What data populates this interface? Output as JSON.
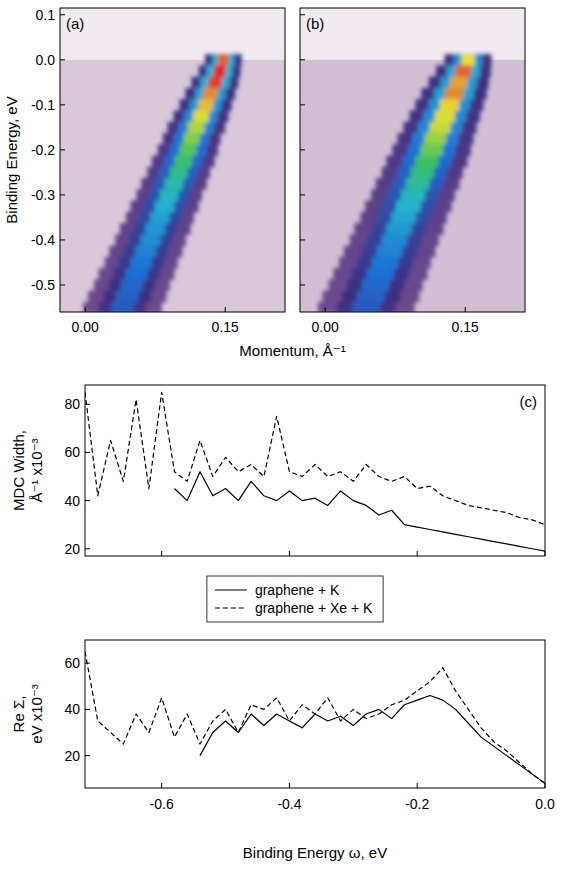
{
  "chart_data": [
    {
      "type": "band",
      "title": "(a)",
      "ylabel": "Binding Energy, eV",
      "xlabel": "Momentum, Å⁻¹",
      "xlim": [
        -0.027,
        0.214
      ],
      "ylim": [
        -0.56,
        0.115
      ],
      "xticks": [
        {
          "value": 0,
          "label": "0.00"
        },
        {
          "value": 0.15,
          "label": "0.15"
        }
      ],
      "yticks": [
        0.1,
        {
          "value": 0,
          "label": "0.0"
        },
        -0.1,
        -0.2,
        -0.3,
        -0.4,
        -0.5
      ],
      "x": [
        0.148,
        0.144,
        0.139,
        0.134,
        0.129,
        0.124,
        0.119,
        0.114,
        0.11,
        0.105,
        0.1,
        0.095,
        0.09,
        0.085,
        0.08,
        0.075,
        0.07,
        0.065,
        0.06,
        0.055,
        0.05,
        0.045,
        0.04
      ],
      "y": [
        0,
        -0.025,
        -0.05,
        -0.075,
        -0.1,
        -0.125,
        -0.15,
        -0.175,
        -0.2,
        -0.225,
        -0.25,
        -0.275,
        -0.3,
        -0.325,
        -0.35,
        -0.375,
        -0.4,
        -0.425,
        -0.45,
        -0.475,
        -0.5,
        -0.525,
        -0.55
      ],
      "width": [
        0.014,
        0.016,
        0.018,
        0.019,
        0.02,
        0.021,
        0.022,
        0.022,
        0.023,
        0.024,
        0.024,
        0.025,
        0.025,
        0.026,
        0.026,
        0.027,
        0.027,
        0.028,
        0.028,
        0.029,
        0.029,
        0.03,
        0.03
      ],
      "intensity": [
        0.95,
        1,
        0.98,
        0.92,
        0.88,
        0.84,
        0.8,
        0.76,
        0.72,
        0.68,
        0.64,
        0.6,
        0.57,
        0.54,
        0.51,
        0.48,
        0.46,
        0.44,
        0.42,
        0.4,
        0.38,
        0.36,
        0.34
      ]
    },
    {
      "type": "band",
      "title": "(b)",
      "tick_labels": "x",
      "xlim": [
        -0.027,
        0.214
      ],
      "ylim": [
        -0.56,
        0.115
      ],
      "xticks": [
        {
          "value": 0,
          "label": "0.00"
        },
        {
          "value": 0.15,
          "label": "0.15"
        }
      ],
      "yticks": [
        0.1,
        {
          "value": 0,
          "label": "0.0"
        },
        -0.1,
        -0.2,
        -0.3,
        -0.4,
        -0.5
      ],
      "x": [
        0.153,
        0.148,
        0.143,
        0.138,
        0.133,
        0.128,
        0.123,
        0.118,
        0.114,
        0.109,
        0.104,
        0.099,
        0.094,
        0.089,
        0.084,
        0.079,
        0.074,
        0.069,
        0.064,
        0.059,
        0.054,
        0.049,
        0.044
      ],
      "y": [
        0,
        -0.025,
        -0.05,
        -0.075,
        -0.1,
        -0.125,
        -0.15,
        -0.175,
        -0.2,
        -0.225,
        -0.25,
        -0.275,
        -0.3,
        -0.325,
        -0.35,
        -0.375,
        -0.4,
        -0.425,
        -0.45,
        -0.475,
        -0.5,
        -0.525,
        -0.55
      ],
      "width": [
        0.018,
        0.021,
        0.023,
        0.025,
        0.026,
        0.027,
        0.028,
        0.029,
        0.03,
        0.031,
        0.031,
        0.032,
        0.032,
        0.033,
        0.033,
        0.034,
        0.034,
        0.035,
        0.035,
        0.036,
        0.036,
        0.037,
        0.037
      ],
      "intensity": [
        0.85,
        0.95,
        0.9,
        0.92,
        0.86,
        0.84,
        0.82,
        0.78,
        0.74,
        0.7,
        0.66,
        0.62,
        0.58,
        0.55,
        0.52,
        0.49,
        0.46,
        0.44,
        0.42,
        0.4,
        0.38,
        0.36,
        0.34
      ]
    },
    {
      "type": "line",
      "title": "(c)",
      "ylabel": "MDC Width, Å⁻¹ x10⁻³",
      "tick_labels": "y",
      "legend": "bottom",
      "xlim": [
        -0.72,
        0
      ],
      "ylim": [
        17,
        88
      ],
      "xticks": [
        -0.6,
        -0.4,
        -0.2,
        {
          "value": 0,
          "label": "0.0"
        }
      ],
      "yticks": [
        20,
        40,
        60,
        80
      ],
      "x": [
        -0.72,
        -0.7,
        -0.68,
        -0.66,
        -0.64,
        -0.62,
        -0.6,
        -0.58,
        -0.56,
        -0.54,
        -0.52,
        -0.5,
        -0.48,
        -0.46,
        -0.44,
        -0.42,
        -0.4,
        -0.38,
        -0.36,
        -0.34,
        -0.32,
        -0.3,
        -0.28,
        -0.26,
        -0.24,
        -0.22,
        -0.2,
        -0.18,
        -0.16,
        -0.14,
        -0.12,
        -0.1,
        -0.08,
        -0.06,
        -0.04,
        -0.02,
        0
      ],
      "series": [
        {
          "name": "graphene + K",
          "color": "#000000",
          "line_style": "solid",
          "values": [
            null,
            null,
            null,
            null,
            null,
            null,
            null,
            45,
            40,
            52,
            42,
            45,
            40,
            48,
            42,
            40,
            44,
            40,
            41,
            38,
            44,
            40,
            38,
            34,
            36,
            30,
            29,
            28,
            27,
            26,
            25,
            24,
            23,
            22,
            21,
            20,
            19
          ]
        },
        {
          "name": "graphene + Xe + K",
          "color": "#000000",
          "line_style": "dashed",
          "values": [
            85,
            42,
            65,
            48,
            82,
            45,
            85,
            52,
            48,
            65,
            50,
            58,
            52,
            55,
            50,
            75,
            52,
            50,
            55,
            50,
            52,
            48,
            55,
            50,
            48,
            50,
            45,
            46,
            42,
            40,
            38,
            37,
            36,
            35,
            33,
            32,
            30
          ]
        }
      ]
    },
    {
      "type": "line",
      "ylabel": "Re Σ, eV x10⁻³",
      "xlabel": "Binding Energy ω, eV",
      "xlim": [
        -0.72,
        0
      ],
      "ylim": [
        6,
        70
      ],
      "xticks": [
        -0.6,
        -0.4,
        -0.2,
        {
          "value": 0,
          "label": "0.0"
        }
      ],
      "yticks": [
        20,
        40,
        60
      ],
      "x": [
        -0.72,
        -0.7,
        -0.68,
        -0.66,
        -0.64,
        -0.62,
        -0.6,
        -0.58,
        -0.56,
        -0.54,
        -0.52,
        -0.5,
        -0.48,
        -0.46,
        -0.44,
        -0.42,
        -0.4,
        -0.38,
        -0.36,
        -0.34,
        -0.32,
        -0.3,
        -0.28,
        -0.26,
        -0.24,
        -0.22,
        -0.2,
        -0.18,
        -0.16,
        -0.14,
        -0.12,
        -0.1,
        -0.08,
        -0.06,
        -0.04,
        -0.02,
        0
      ],
      "series": [
        {
          "color": "#000000",
          "line_style": "solid",
          "values": [
            null,
            null,
            null,
            null,
            null,
            null,
            null,
            null,
            null,
            20,
            30,
            35,
            30,
            38,
            33,
            38,
            35,
            32,
            38,
            35,
            37,
            33,
            38,
            40,
            36,
            42,
            44,
            46,
            44,
            40,
            34,
            28,
            24,
            20,
            16,
            12,
            8
          ]
        },
        {
          "color": "#000000",
          "line_style": "dashed",
          "values": [
            65,
            35,
            30,
            25,
            38,
            30,
            45,
            28,
            38,
            25,
            35,
            40,
            30,
            42,
            40,
            45,
            35,
            42,
            38,
            45,
            35,
            40,
            36,
            38,
            42,
            44,
            48,
            52,
            58,
            48,
            40,
            32,
            26,
            22,
            17,
            12,
            8
          ]
        }
      ]
    }
  ]
}
